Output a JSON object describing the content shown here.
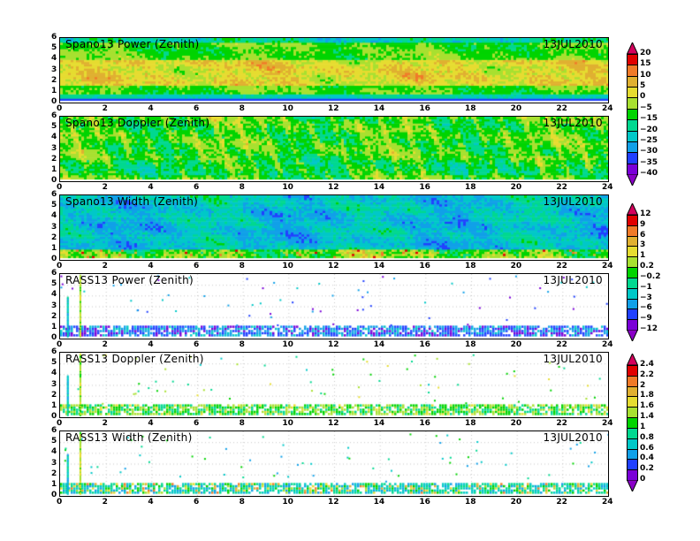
{
  "chart_data": {
    "type": "heatmap",
    "xlim": [
      0,
      24
    ],
    "ylim": [
      0,
      6
    ],
    "xticks": [
      "0",
      "2",
      "4",
      "6",
      "8",
      "10",
      "12",
      "14",
      "16",
      "18",
      "20",
      "22",
      "24"
    ],
    "yticks": [
      "0",
      "1",
      "2",
      "3",
      "4",
      "5",
      "6"
    ],
    "panels": [
      {
        "title": "Spano13 Power (Zenith)",
        "date": "13JUL2010",
        "kind": "power"
      },
      {
        "title": "Spano13 Doppler (Zenith)",
        "date": "13JUL2010",
        "kind": "doppler"
      },
      {
        "title": "Spano13 Width (Zenith)",
        "date": "13JUL2010",
        "kind": "width"
      },
      {
        "title": "RASS13 Power (Zenith)",
        "date": "13JUL2010",
        "kind": "rass_power"
      },
      {
        "title": "RASS13 Doppler (Zenith)",
        "date": "13JUL2010",
        "kind": "rass_doppler"
      },
      {
        "title": "RASS13 Width (Zenith)",
        "date": "13JUL2010",
        "kind": "rass_width"
      }
    ],
    "colorbars": [
      {
        "levels": [
          "20",
          "15",
          "10",
          "5",
          "0",
          "−5",
          "−15",
          "−20",
          "−25",
          "−30",
          "−35",
          "−40"
        ]
      },
      {
        "levels": [
          "12",
          "9",
          "6",
          "3",
          "1",
          "0.2",
          "−0.2",
          "−1",
          "−3",
          "−6",
          "−9",
          "−12"
        ]
      },
      {
        "levels": [
          "2.4",
          "2.2",
          "2",
          "1.8",
          "1.6",
          "1.4",
          "1",
          "0.8",
          "0.6",
          "0.4",
          "0.2",
          "0"
        ]
      }
    ],
    "colors": [
      "#e00000",
      "#f07a28",
      "#e0b030",
      "#e6dc30",
      "#a8e030",
      "#00d400",
      "#00d890",
      "#00c8c8",
      "#10a0e8",
      "#2040ff",
      "#7a00d8"
    ],
    "arrow_top": "#d4005c",
    "arrow_bottom": "#8a00c8"
  }
}
